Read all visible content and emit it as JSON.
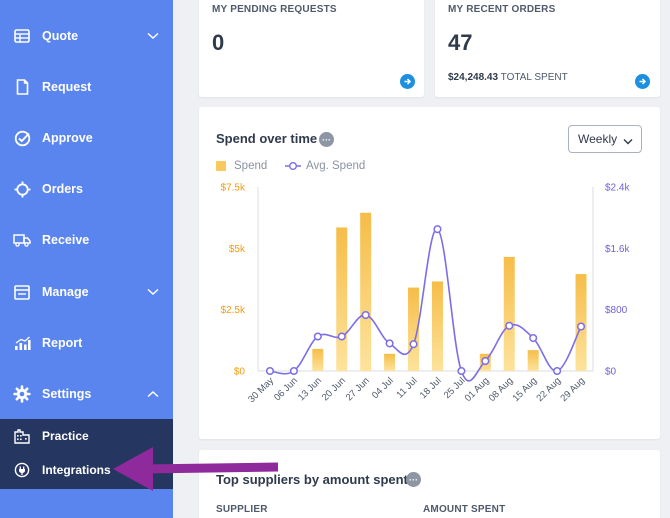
{
  "sidebar": {
    "items": [
      {
        "label": "Quote",
        "icon": "table-icon",
        "has_chevron": "down"
      },
      {
        "label": "Request",
        "icon": "document-icon"
      },
      {
        "label": "Approve",
        "icon": "check-circle-icon"
      },
      {
        "label": "Orders",
        "icon": "crosshair-icon"
      },
      {
        "label": "Receive",
        "icon": "truck-icon"
      },
      {
        "label": "Manage",
        "icon": "window-icon",
        "has_chevron": "down"
      },
      {
        "label": "Report",
        "icon": "bar-chart-icon"
      },
      {
        "label": "Settings",
        "icon": "gear-icon",
        "has_chevron": "up"
      }
    ],
    "sub_items": [
      {
        "label": "Practice",
        "icon": "building-icon"
      },
      {
        "label": "Integrations",
        "icon": "plug-icon"
      }
    ]
  },
  "stats": {
    "pending": {
      "title": "MY PENDING REQUESTS",
      "value": "0"
    },
    "orders": {
      "title": "MY RECENT ORDERS",
      "value": "47",
      "spent_amount": "$24,248.43",
      "spent_label": "TOTAL SPENT"
    }
  },
  "spend_chart": {
    "title": "Spend over time",
    "info": "···",
    "period_select": "Weekly"
  },
  "suppliers": {
    "title": "Top suppliers by amount spent",
    "info": "···",
    "col_supplier": "SUPPLIER",
    "col_amount": "AMOUNT SPENT"
  },
  "colors": {
    "sidebar": "#5a84ee",
    "sidebar_active": "#253660",
    "spend_bar": "#f9c95f",
    "avg_line": "#7b6ee8",
    "accent": "#1d8fe0",
    "annotation_arrow": "#8e2a9c"
  },
  "chart_data": {
    "type": "bar",
    "categories": [
      "30 May",
      "06 Jun",
      "13 Jun",
      "20 Jun",
      "27 Jun",
      "04 Jul",
      "11 Jul",
      "18 Jul",
      "25 Jul",
      "01 Aug",
      "08 Aug",
      "15 Aug",
      "22 Aug",
      "29 Aug"
    ],
    "series": [
      {
        "name": "Spend",
        "type": "bar",
        "axis": "left",
        "values": [
          0,
          0,
          900,
          5850,
          6450,
          700,
          3400,
          3650,
          0,
          700,
          4650,
          850,
          0,
          3950
        ]
      },
      {
        "name": "Avg. Spend",
        "type": "line",
        "axis": "right",
        "values": [
          0,
          0,
          450,
          450,
          730,
          360,
          350,
          1850,
          0,
          130,
          590,
          430,
          0,
          580
        ]
      }
    ],
    "y_left": {
      "ticks": [
        "$7.5k",
        "$5k",
        "$2.5k",
        "$0"
      ],
      "range": [
        0,
        7500
      ]
    },
    "y_right": {
      "ticks": [
        "$2.4k",
        "$1.6k",
        "$800",
        "$0"
      ],
      "range": [
        0,
        2400
      ]
    },
    "legend": "top-left"
  }
}
